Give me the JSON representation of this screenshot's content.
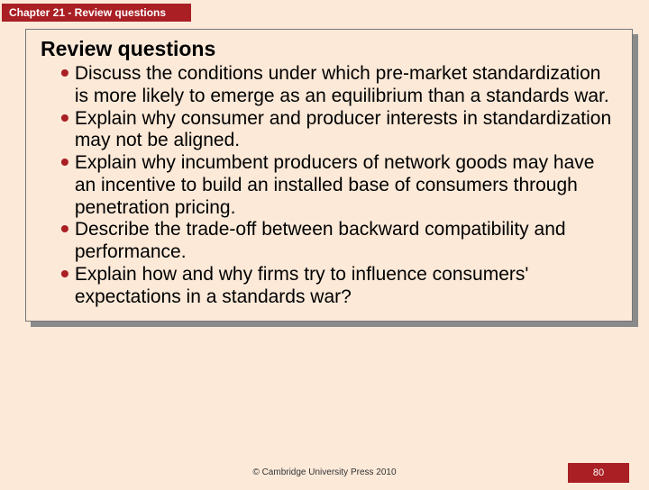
{
  "header": {
    "label": "Chapter 21 - Review questions"
  },
  "panel": {
    "title": "Review questions",
    "items": [
      "Discuss the conditions under which pre-market standardization is more likely to emerge as an equilibrium than a standards war.",
      "Explain why consumer and producer interests in standardization may not be aligned.",
      "Explain why incumbent producers of network goods may have an incentive to build an installed base of consumers through penetration pricing.",
      "Describe the trade-off between backward compatibility and performance.",
      "Explain how and why firms try to influence consumers' expectations in a standards war?"
    ]
  },
  "footer": {
    "copyright": "© Cambridge University Press 2010",
    "page_number": "80"
  },
  "colors": {
    "background": "#fce9d8",
    "accent": "#a91f24",
    "text": "#000000",
    "shadow": "#8a8a8a",
    "border": "#777777"
  },
  "typography": {
    "title_fontsize": 23,
    "body_fontsize": 21,
    "header_fontsize": 12,
    "footer_fontsize": 10,
    "pagenum_fontsize": 11
  }
}
